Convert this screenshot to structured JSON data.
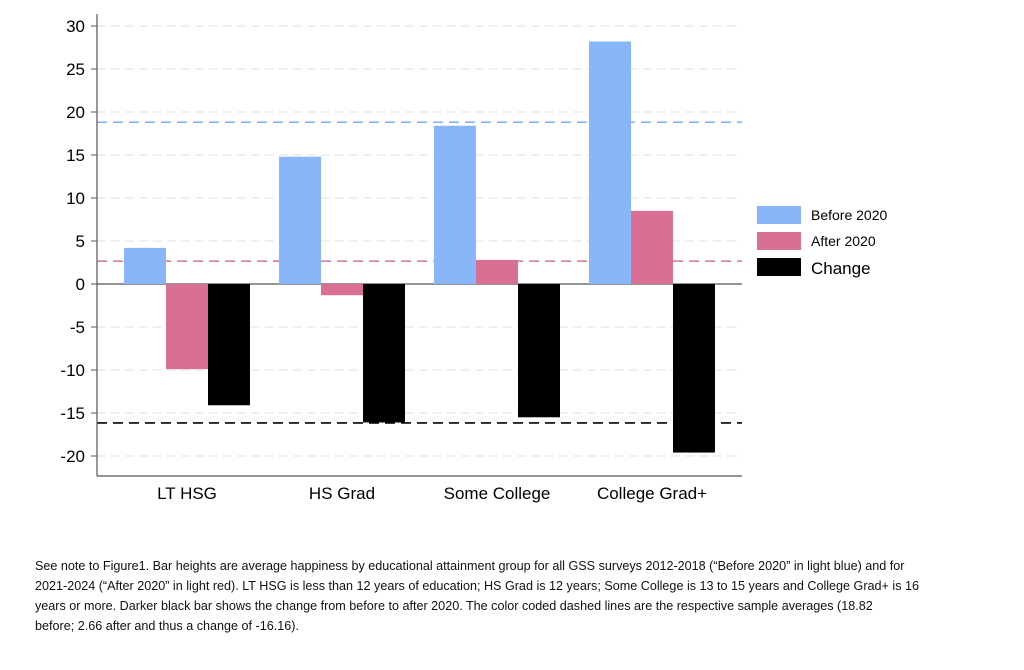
{
  "chart_data": {
    "type": "bar",
    "title": "",
    "xlabel": "",
    "ylabel": "",
    "ylim": [
      -22,
      31
    ],
    "yticks": [
      30,
      25,
      20,
      15,
      10,
      5,
      0,
      -5,
      -10,
      -15,
      -20
    ],
    "grid": true,
    "categories": [
      "LT HSG",
      "HS Grad",
      "Some College",
      "College Grad+"
    ],
    "series": [
      {
        "name": "Before 2020",
        "color": "#88b6f8",
        "values": [
          4.2,
          14.8,
          18.4,
          28.2
        ]
      },
      {
        "name": "After 2020",
        "color": "#d96f93",
        "values": [
          -9.9,
          -1.3,
          2.8,
          8.5
        ]
      },
      {
        "name": "Change",
        "color": "#000000",
        "values": [
          -14.1,
          -16.1,
          -15.5,
          -19.6
        ]
      }
    ],
    "reference_lines": [
      {
        "series": "Before 2020",
        "value": 18.82,
        "color": "#88b6f8"
      },
      {
        "series": "After 2020",
        "value": 2.66,
        "color": "#d96f93"
      },
      {
        "series": "Change",
        "value": -16.16,
        "color": "#000000"
      }
    ],
    "legend_position": "right"
  },
  "caption": {
    "lines": [
      "See note to Figure1. Bar heights are average happiness by educational attainment group for all GSS surveys 2012-2018 (“Before 2020” in light blue) and for",
      "2021-2024 (“After 2020” in light red).   LT HSG is less than 12 years of education; HS Grad is 12 years; Some College is 13 to 15 years and College Grad+ is 16",
      "years or more.  Darker black bar shows the change from before to after 2020.  The color coded dashed lines are the respective sample averages (18.82",
      "before; 2.66 after and thus a change of -16.16)."
    ]
  }
}
